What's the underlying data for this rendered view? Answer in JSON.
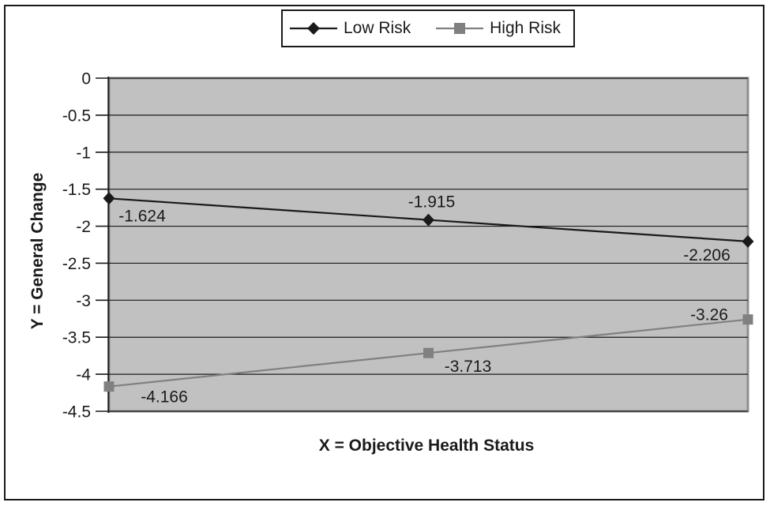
{
  "chart_data": {
    "type": "line",
    "title": "",
    "xlabel": "X = Objective Health Status",
    "ylabel": "Y = General Change",
    "ylim": [
      -4.5,
      0
    ],
    "yticks": [
      0,
      -0.5,
      -1,
      -1.5,
      -2,
      -2.5,
      -3,
      -3.5,
      -4,
      -4.5
    ],
    "ytick_labels": [
      "0",
      "-0.5",
      "-1",
      "-1.5",
      "-2",
      "-2.5",
      "-3",
      "-3.5",
      "-4",
      "-4.5"
    ],
    "x_tick_labels": [],
    "grid": true,
    "legend_position": "top-center",
    "plot_background": "#c1c1c1",
    "plot_border_color": "#8f8f8f",
    "gridline_color": "#1a1a1a",
    "text_color": "#1a1a1a",
    "series": [
      {
        "name": "Low Risk",
        "marker": "diamond",
        "color": "#1a1a1a",
        "values": [
          -1.624,
          -1.915,
          -2.206
        ],
        "point_labels": [
          "-1.624",
          "-1.915",
          "-2.206"
        ]
      },
      {
        "name": "High Risk",
        "marker": "square",
        "color": "#808080",
        "values": [
          -4.166,
          -3.713,
          -3.26
        ],
        "point_labels": [
          "-4.166",
          "-3.713",
          "-3.26"
        ]
      }
    ]
  }
}
